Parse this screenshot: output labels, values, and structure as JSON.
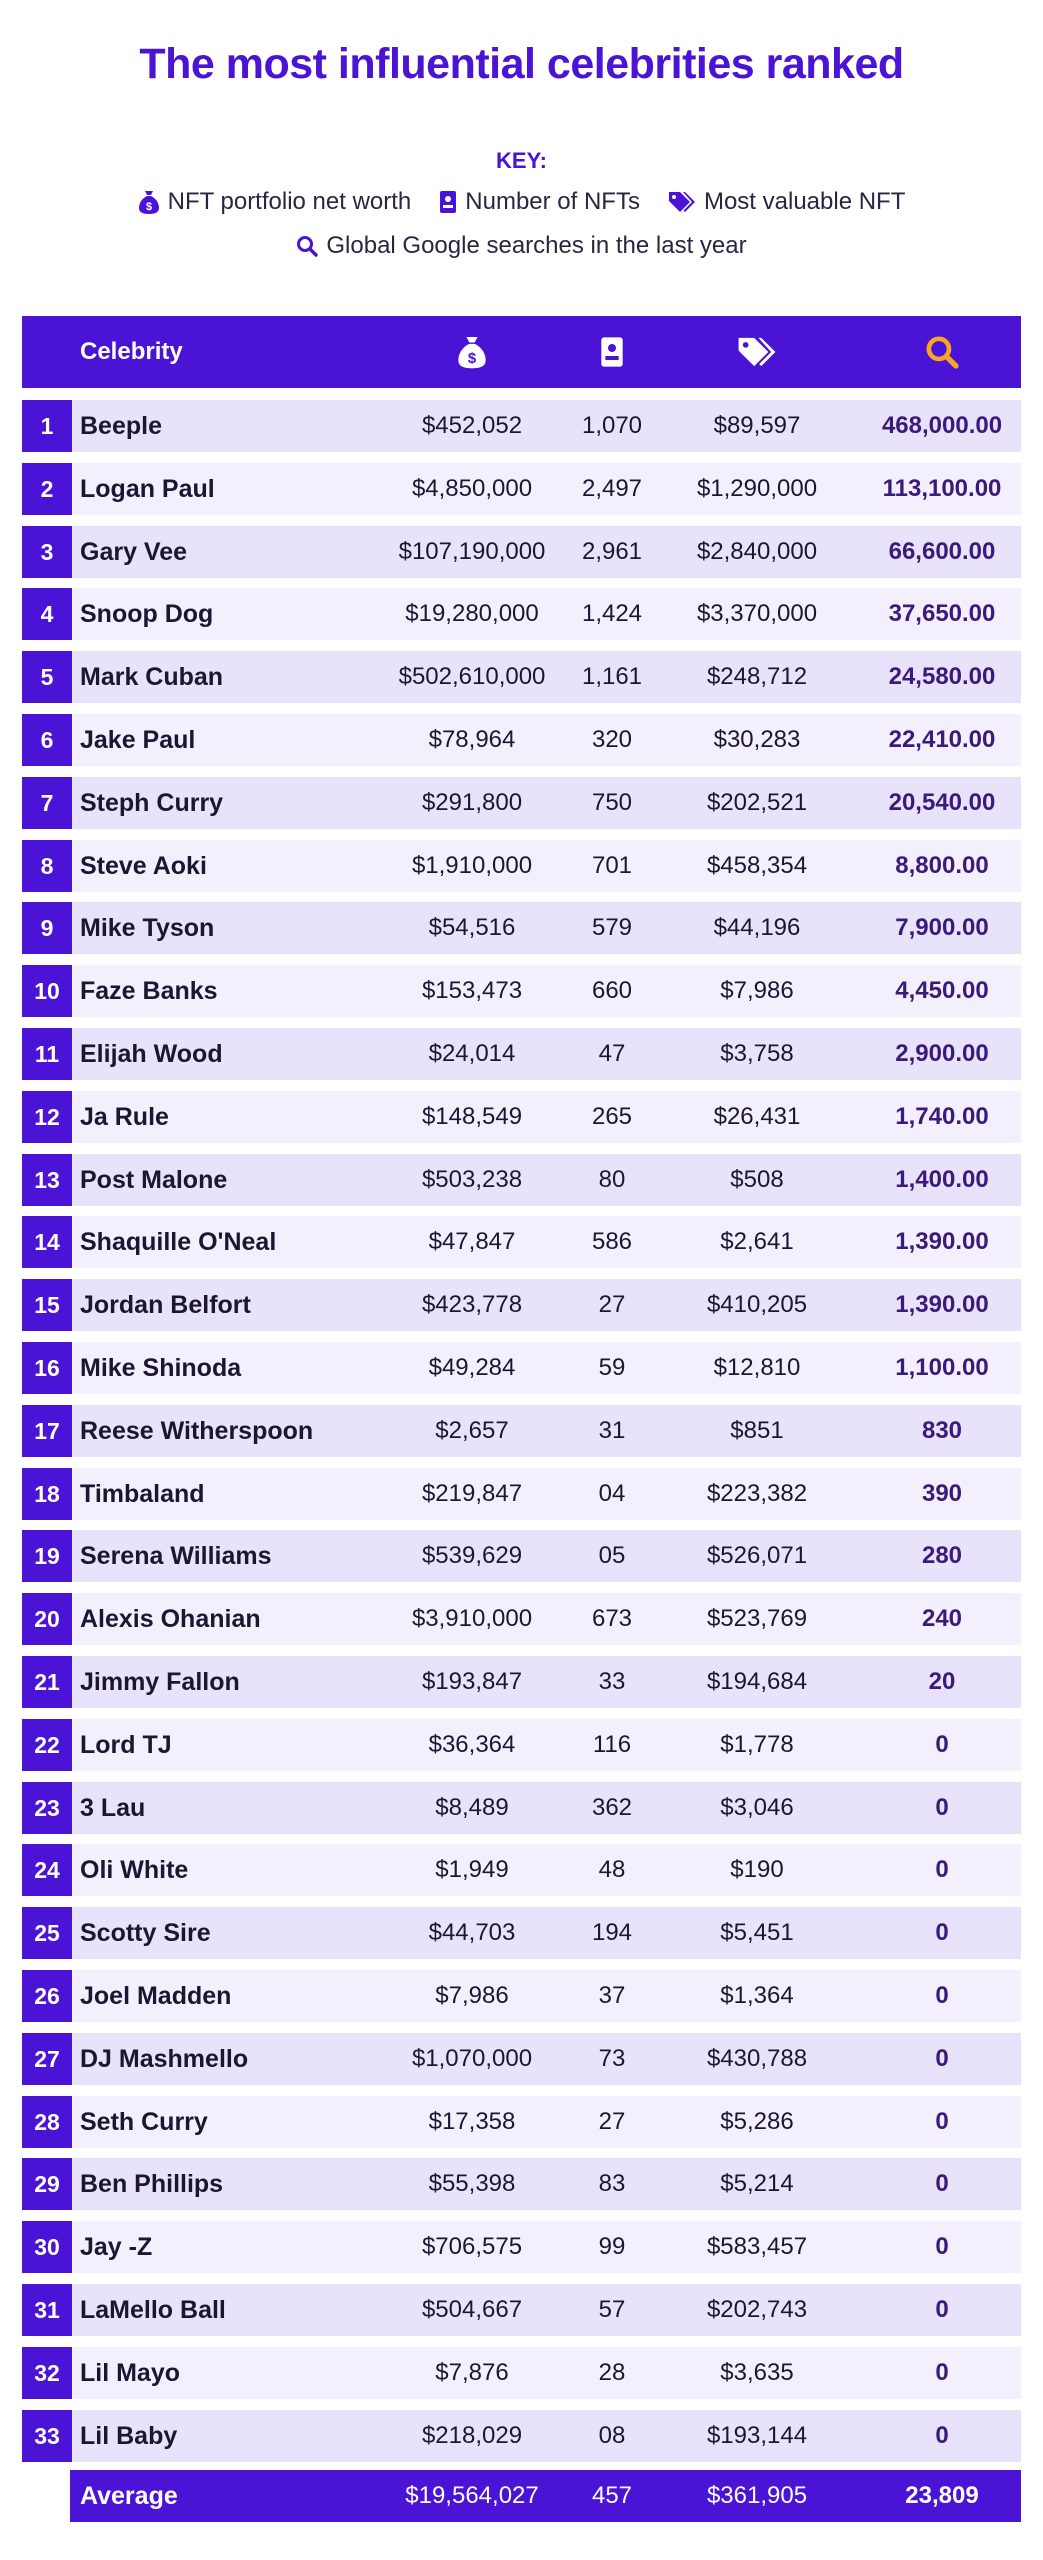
{
  "title": "The most influential celebrities ranked",
  "key": {
    "label": "KEY:",
    "items": [
      {
        "icon": "money-bag-icon",
        "label": "NFT portfolio net worth"
      },
      {
        "icon": "id-card-icon",
        "label": "Number of NFTs"
      },
      {
        "icon": "price-tags-icon",
        "label": "Most valuable NFT"
      },
      {
        "icon": "search-icon",
        "label": "Global Google searches in the last year"
      }
    ]
  },
  "colors": {
    "accent": "#4a13d6",
    "row": "#e9e2fb",
    "row_alt": "#f3effd",
    "search_icon": "#f5a623"
  },
  "table": {
    "header": {
      "celebrity": "Celebrity"
    }
  },
  "chart_data": {
    "type": "table",
    "title": "The most influential celebrities ranked",
    "columns": [
      "Celebrity",
      "NFT portfolio net worth",
      "Number of NFTs",
      "Most valuable NFT",
      "Global Google searches in the last year"
    ],
    "rows": [
      {
        "rank": "1",
        "name": "Beeple",
        "net_worth": "$452,052",
        "count": "1,070",
        "most_valuable": "$89,597",
        "searches": "468,000.00"
      },
      {
        "rank": "2",
        "name": "Logan Paul",
        "net_worth": "$4,850,000",
        "count": "2,497",
        "most_valuable": "$1,290,000",
        "searches": "113,100.00"
      },
      {
        "rank": "3",
        "name": "Gary Vee",
        "net_worth": "$107,190,000",
        "count": "2,961",
        "most_valuable": "$2,840,000",
        "searches": "66,600.00"
      },
      {
        "rank": "4",
        "name": "Snoop Dog",
        "net_worth": "$19,280,000",
        "count": "1,424",
        "most_valuable": "$3,370,000",
        "searches": "37,650.00"
      },
      {
        "rank": "5",
        "name": "Mark Cuban",
        "net_worth": "$502,610,000",
        "count": "1,161",
        "most_valuable": "$248,712",
        "searches": "24,580.00"
      },
      {
        "rank": "6",
        "name": "Jake Paul",
        "net_worth": "$78,964",
        "count": "320",
        "most_valuable": "$30,283",
        "searches": "22,410.00"
      },
      {
        "rank": "7",
        "name": "Steph Curry",
        "net_worth": "$291,800",
        "count": "750",
        "most_valuable": "$202,521",
        "searches": "20,540.00"
      },
      {
        "rank": "8",
        "name": "Steve Aoki",
        "net_worth": "$1,910,000",
        "count": "701",
        "most_valuable": "$458,354",
        "searches": "8,800.00"
      },
      {
        "rank": "9",
        "name": "Mike Tyson",
        "net_worth": "$54,516",
        "count": "579",
        "most_valuable": "$44,196",
        "searches": "7,900.00"
      },
      {
        "rank": "10",
        "name": "Faze Banks",
        "net_worth": "$153,473",
        "count": "660",
        "most_valuable": "$7,986",
        "searches": "4,450.00"
      },
      {
        "rank": "11",
        "name": "Elijah Wood",
        "net_worth": "$24,014",
        "count": "47",
        "most_valuable": "$3,758",
        "searches": "2,900.00"
      },
      {
        "rank": "12",
        "name": "Ja Rule",
        "net_worth": "$148,549",
        "count": "265",
        "most_valuable": "$26,431",
        "searches": "1,740.00"
      },
      {
        "rank": "13",
        "name": "Post Malone",
        "net_worth": "$503,238",
        "count": "80",
        "most_valuable": "$508",
        "searches": "1,400.00"
      },
      {
        "rank": "14",
        "name": "Shaquille O'Neal",
        "net_worth": "$47,847",
        "count": "586",
        "most_valuable": "$2,641",
        "searches": "1,390.00"
      },
      {
        "rank": "15",
        "name": "Jordan Belfort",
        "net_worth": "$423,778",
        "count": "27",
        "most_valuable": "$410,205",
        "searches": "1,390.00"
      },
      {
        "rank": "16",
        "name": "Mike Shinoda",
        "net_worth": "$49,284",
        "count": "59",
        "most_valuable": "$12,810",
        "searches": "1,100.00"
      },
      {
        "rank": "17",
        "name": "Reese Witherspoon",
        "net_worth": "$2,657",
        "count": "31",
        "most_valuable": "$851",
        "searches": "830"
      },
      {
        "rank": "18",
        "name": "Timbaland",
        "net_worth": "$219,847",
        "count": "04",
        "most_valuable": "$223,382",
        "searches": "390"
      },
      {
        "rank": "19",
        "name": "Serena Williams",
        "net_worth": "$539,629",
        "count": "05",
        "most_valuable": "$526,071",
        "searches": "280"
      },
      {
        "rank": "20",
        "name": "Alexis Ohanian",
        "net_worth": "$3,910,000",
        "count": "673",
        "most_valuable": "$523,769",
        "searches": "240"
      },
      {
        "rank": "21",
        "name": "Jimmy Fallon",
        "net_worth": "$193,847",
        "count": "33",
        "most_valuable": "$194,684",
        "searches": "20"
      },
      {
        "rank": "22",
        "name": "Lord TJ",
        "net_worth": "$36,364",
        "count": "116",
        "most_valuable": "$1,778",
        "searches": "0"
      },
      {
        "rank": "23",
        "name": "3 Lau",
        "net_worth": "$8,489",
        "count": "362",
        "most_valuable": "$3,046",
        "searches": "0"
      },
      {
        "rank": "24",
        "name": "Oli White",
        "net_worth": "$1,949",
        "count": "48",
        "most_valuable": "$190",
        "searches": "0"
      },
      {
        "rank": "25",
        "name": "Scotty Sire",
        "net_worth": "$44,703",
        "count": "194",
        "most_valuable": "$5,451",
        "searches": "0"
      },
      {
        "rank": "26",
        "name": "Joel Madden",
        "net_worth": "$7,986",
        "count": "37",
        "most_valuable": "$1,364",
        "searches": "0"
      },
      {
        "rank": "27",
        "name": "DJ Mashmello",
        "net_worth": "$1,070,000",
        "count": "73",
        "most_valuable": "$430,788",
        "searches": "0"
      },
      {
        "rank": "28",
        "name": "Seth Curry",
        "net_worth": "$17,358",
        "count": "27",
        "most_valuable": "$5,286",
        "searches": "0"
      },
      {
        "rank": "29",
        "name": "Ben Phillips",
        "net_worth": "$55,398",
        "count": "83",
        "most_valuable": "$5,214",
        "searches": "0"
      },
      {
        "rank": "30",
        "name": "Jay -Z",
        "net_worth": "$706,575",
        "count": "99",
        "most_valuable": "$583,457",
        "searches": "0"
      },
      {
        "rank": "31",
        "name": "LaMello Ball",
        "net_worth": "$504,667",
        "count": "57",
        "most_valuable": "$202,743",
        "searches": "0"
      },
      {
        "rank": "32",
        "name": "Lil Mayo",
        "net_worth": "$7,876",
        "count": "28",
        "most_valuable": "$3,635",
        "searches": "0"
      },
      {
        "rank": "33",
        "name": "Lil Baby",
        "net_worth": "$218,029",
        "count": "08",
        "most_valuable": "$193,144",
        "searches": "0"
      }
    ],
    "average": {
      "name": "Average",
      "net_worth": "$19,564,027",
      "count": "457",
      "most_valuable": "$361,905",
      "searches": "23,809"
    }
  }
}
